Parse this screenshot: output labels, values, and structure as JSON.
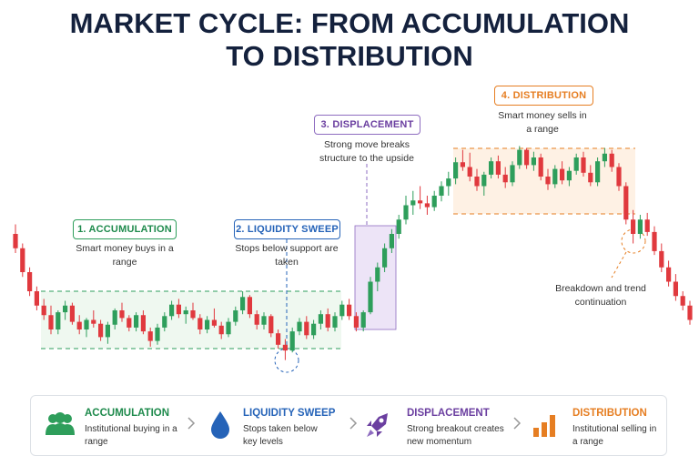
{
  "chart_data": {
    "type": "candlestick",
    "title": "MARKET CYCLE: FROM ACCUMULATION TO DISTRIBUTION",
    "up_color": "#2e9e5b",
    "down_color": "#e0393e",
    "ylim": [
      0,
      300
    ],
    "ohlc": [
      [
        160,
        170,
        140,
        145
      ],
      [
        145,
        150,
        115,
        120
      ],
      [
        120,
        125,
        95,
        100
      ],
      [
        100,
        105,
        80,
        85
      ],
      [
        85,
        92,
        70,
        75
      ],
      [
        75,
        85,
        55,
        60
      ],
      [
        60,
        80,
        55,
        78
      ],
      [
        78,
        90,
        70,
        85
      ],
      [
        85,
        88,
        65,
        68
      ],
      [
        68,
        75,
        55,
        60
      ],
      [
        60,
        72,
        52,
        70
      ],
      [
        70,
        80,
        62,
        66
      ],
      [
        66,
        70,
        48,
        52
      ],
      [
        52,
        68,
        45,
        65
      ],
      [
        65,
        82,
        60,
        80
      ],
      [
        80,
        88,
        68,
        72
      ],
      [
        72,
        75,
        58,
        62
      ],
      [
        62,
        78,
        58,
        75
      ],
      [
        75,
        80,
        55,
        58
      ],
      [
        58,
        62,
        42,
        48
      ],
      [
        48,
        66,
        44,
        62
      ],
      [
        62,
        78,
        58,
        74
      ],
      [
        74,
        90,
        70,
        86
      ],
      [
        86,
        92,
        72,
        76
      ],
      [
        76,
        84,
        66,
        80
      ],
      [
        80,
        88,
        70,
        72
      ],
      [
        72,
        76,
        55,
        60
      ],
      [
        60,
        74,
        56,
        70
      ],
      [
        70,
        82,
        62,
        64
      ],
      [
        64,
        68,
        50,
        55
      ],
      [
        55,
        72,
        52,
        68
      ],
      [
        68,
        84,
        64,
        80
      ],
      [
        80,
        100,
        76,
        94
      ],
      [
        94,
        96,
        72,
        76
      ],
      [
        76,
        80,
        60,
        65
      ],
      [
        65,
        78,
        60,
        74
      ],
      [
        74,
        76,
        52,
        56
      ],
      [
        56,
        60,
        40,
        44
      ],
      [
        44,
        50,
        28,
        38
      ],
      [
        38,
        62,
        36,
        58
      ],
      [
        58,
        72,
        54,
        68
      ],
      [
        68,
        74,
        50,
        54
      ],
      [
        54,
        70,
        50,
        66
      ],
      [
        66,
        80,
        60,
        76
      ],
      [
        76,
        82,
        58,
        62
      ],
      [
        62,
        78,
        58,
        74
      ],
      [
        74,
        90,
        70,
        86
      ],
      [
        86,
        92,
        70,
        74
      ],
      [
        74,
        78,
        58,
        62
      ],
      [
        62,
        80,
        58,
        78
      ],
      [
        78,
        115,
        76,
        110
      ],
      [
        110,
        130,
        100,
        125
      ],
      [
        125,
        150,
        120,
        145
      ],
      [
        145,
        165,
        140,
        160
      ],
      [
        160,
        180,
        155,
        175
      ],
      [
        175,
        200,
        170,
        190
      ],
      [
        190,
        205,
        180,
        195
      ],
      [
        195,
        210,
        186,
        192
      ],
      [
        192,
        200,
        180,
        188
      ],
      [
        188,
        205,
        184,
        200
      ],
      [
        200,
        215,
        194,
        210
      ],
      [
        210,
        225,
        200,
        218
      ],
      [
        218,
        240,
        212,
        235
      ],
      [
        235,
        248,
        226,
        230
      ],
      [
        230,
        245,
        215,
        220
      ],
      [
        220,
        228,
        205,
        210
      ],
      [
        210,
        225,
        200,
        222
      ],
      [
        222,
        240,
        218,
        236
      ],
      [
        236,
        242,
        218,
        222
      ],
      [
        222,
        230,
        208,
        214
      ],
      [
        214,
        236,
        210,
        232
      ],
      [
        232,
        252,
        228,
        248
      ],
      [
        248,
        250,
        228,
        232
      ],
      [
        232,
        246,
        226,
        240
      ],
      [
        240,
        244,
        216,
        220
      ],
      [
        220,
        228,
        206,
        212
      ],
      [
        212,
        232,
        208,
        228
      ],
      [
        228,
        236,
        212,
        216
      ],
      [
        216,
        230,
        210,
        226
      ],
      [
        226,
        244,
        222,
        240
      ],
      [
        240,
        246,
        220,
        224
      ],
      [
        224,
        232,
        210,
        214
      ],
      [
        214,
        240,
        210,
        236
      ],
      [
        236,
        250,
        230,
        244
      ],
      [
        244,
        248,
        225,
        230
      ],
      [
        230,
        234,
        205,
        210
      ],
      [
        210,
        214,
        170,
        175
      ],
      [
        175,
        185,
        150,
        160
      ],
      [
        160,
        180,
        155,
        175
      ],
      [
        175,
        182,
        158,
        162
      ],
      [
        162,
        168,
        138,
        142
      ],
      [
        142,
        150,
        120,
        125
      ],
      [
        125,
        132,
        105,
        110
      ],
      [
        110,
        118,
        90,
        95
      ],
      [
        95,
        100,
        80,
        85
      ],
      [
        85,
        90,
        65,
        70
      ]
    ],
    "annotations": [
      {
        "title": "1. ACCUMULATION",
        "text": "Smart money buys in a range"
      },
      {
        "title": "2. LIQUIDITY SWEEP",
        "text": "Stops below support are taken"
      },
      {
        "title": "3. DISPLACEMENT",
        "text": "Strong move breaks structure to the upside"
      },
      {
        "title": "4. DISTRIBUTION",
        "text": "Smart money sells in a range"
      },
      {
        "text": "Breakdown and trend continuation"
      }
    ],
    "legend": [
      {
        "title": "ACCUMULATION",
        "text": "Institutional buying in a range"
      },
      {
        "title": "LIQUIDITY SWEEP",
        "text": "Stops taken below key levels"
      },
      {
        "title": "DISPLACEMENT",
        "text": "Strong breakout creates new momentum"
      },
      {
        "title": "DISTRIBUTION",
        "text": "Institutional selling in a range"
      }
    ]
  }
}
